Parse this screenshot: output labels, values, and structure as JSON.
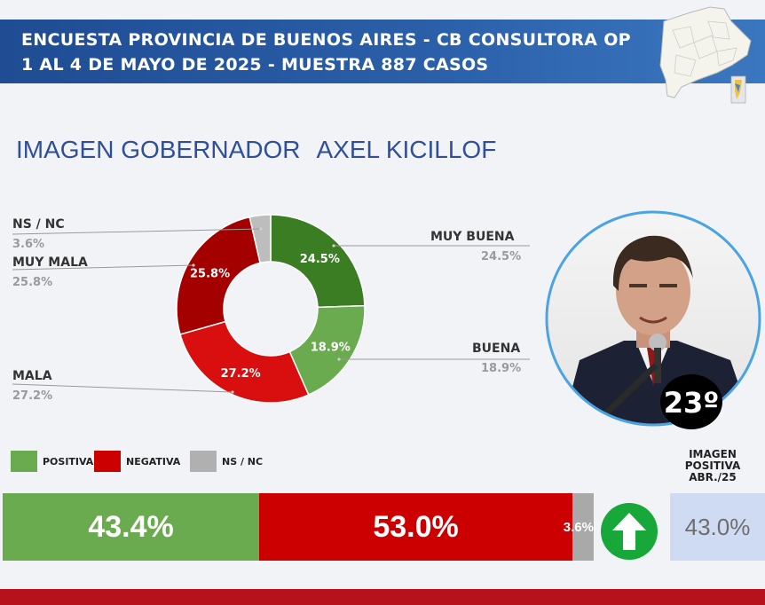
{
  "header": {
    "line1": "ENCUESTA PROVINCIA DE BUENOS AIRES - CB CONSULTORA OP",
    "line2": "1 AL 4 DE MAYO DE 2025 - MUESTRA 887 CASOS"
  },
  "title": {
    "part1": "IMAGEN GOBERNADOR",
    "part2": "AXEL KICILLOF"
  },
  "rank_badge": "23º",
  "chart_data": [
    {
      "type": "pie",
      "variant": "donut",
      "title": "",
      "slices": [
        {
          "label": "MUY BUENA",
          "value": 24.5,
          "display": "24.5%",
          "color": "#3a7d22"
        },
        {
          "label": "BUENA",
          "value": 18.9,
          "display": "18.9%",
          "color": "#6aab4f"
        },
        {
          "label": "MALA",
          "value": 27.2,
          "display": "27.2%",
          "color": "#d90f0f"
        },
        {
          "label": "MUY MALA",
          "value": 25.8,
          "display": "25.8%",
          "color": "#a40000"
        },
        {
          "label": "NS / NC",
          "value": 3.6,
          "display": "3.6%",
          "color": "#bdbdbd"
        }
      ]
    },
    {
      "type": "bar",
      "orientation": "horizontal-stacked",
      "legend": [
        {
          "label": "POSITIVA",
          "color": "#6aab4f"
        },
        {
          "label": "NEGATIVA",
          "color": "#cc0000"
        },
        {
          "label": "NS / NC",
          "color": "#b0b0b0"
        }
      ],
      "segments": [
        {
          "label": "POSITIVA",
          "value": 43.4,
          "display": "43.4%",
          "color": "#6aab4f"
        },
        {
          "label": "NEGATIVA",
          "value": 53.0,
          "display": "53.0%",
          "color": "#cc0000"
        },
        {
          "label": "NS / NC",
          "value": 3.6,
          "display": "3.6%",
          "color": "#a9a9a9"
        }
      ],
      "trend": "up",
      "previous": {
        "label": "IMAGEN POSITIVA ABR./25",
        "value": 43.0,
        "display": "43.0%"
      }
    }
  ]
}
